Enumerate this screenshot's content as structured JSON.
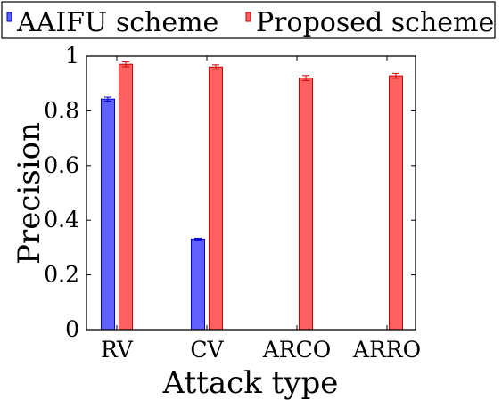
{
  "chart_data": {
    "type": "bar",
    "xlabel": "Attack type",
    "ylabel": "Precision",
    "categories": [
      "RV",
      "CV",
      "ARCO",
      "ARRO"
    ],
    "ylim": [
      0,
      1
    ],
    "yticks": [
      "0",
      "0.2",
      "0.4",
      "0.6",
      "0.8",
      "1"
    ],
    "grid": false,
    "legend_position": "top",
    "series": [
      {
        "name": "AAIFU scheme",
        "color": "#6161ff",
        "edge_color": "#0000cc",
        "values": [
          0.843,
          0.331,
          null,
          null
        ],
        "errors": [
          0.007,
          0.003,
          null,
          null
        ]
      },
      {
        "name": "Proposed scheme",
        "color": "#ff6161",
        "edge_color": "#cc0000",
        "values": [
          0.97,
          0.96,
          0.92,
          0.928
        ],
        "errors": [
          0.009,
          0.008,
          0.009,
          0.009
        ]
      }
    ]
  }
}
